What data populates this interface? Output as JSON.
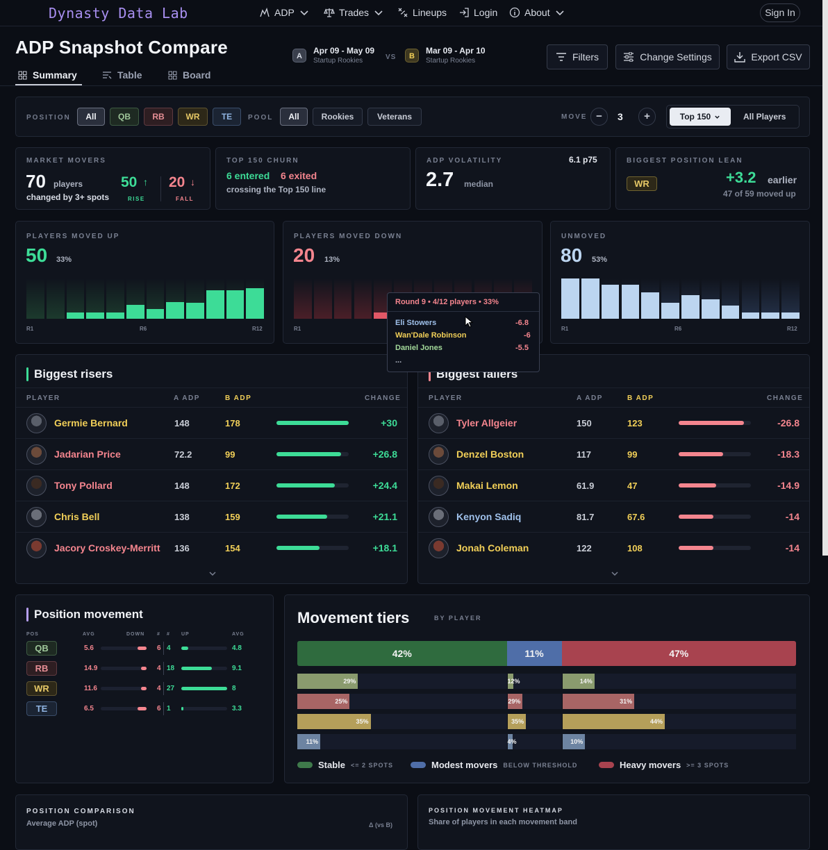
{
  "nav": {
    "logo": "Dynasty Data Lab",
    "items": [
      "ADP",
      "Trades",
      "Lineups",
      "Login",
      "About"
    ],
    "signin": "Sign In"
  },
  "header": {
    "title": "ADP Snapshot Compare",
    "tabs": [
      "Summary",
      "Table",
      "Board"
    ],
    "snapA": {
      "badge": "A",
      "range": "Apr 09 - May 09",
      "sub": "Startup Rookies"
    },
    "vs": "VS",
    "snapB": {
      "badge": "B",
      "range": "Mar 09 - Apr 10",
      "sub": "Startup Rookies"
    },
    "buttons": {
      "filters": "Filters",
      "settings": "Change Settings",
      "export": "Export CSV"
    }
  },
  "filters": {
    "position_label": "POSITION",
    "positions": [
      "All",
      "QB",
      "RB",
      "WR",
      "TE"
    ],
    "pool_label": "POOL",
    "pools": [
      "All",
      "Rookies",
      "Veterans"
    ],
    "move_label": "MOVE",
    "move_value": "3",
    "minus": "−",
    "plus": "+",
    "top": "Top 150",
    "all_players": "All Players"
  },
  "stats": {
    "movers": {
      "label": "MARKET MOVERS",
      "value": "70",
      "unit": "players",
      "sub": "changed by 3+ spots",
      "rise": "50",
      "rise_arrow": "↑",
      "rise_label": "RISE",
      "fall": "20",
      "fall_arrow": "↓",
      "fall_label": "FALL"
    },
    "churn": {
      "label": "TOP 150 CHURN",
      "entered": "6 entered",
      "exited": "6 exited",
      "sub": "crossing the Top 150 line"
    },
    "volatility": {
      "label": "ADP VOLATILITY",
      "p75": "6.1 p75",
      "value": "2.7",
      "unit": "median"
    },
    "lean": {
      "label": "BIGGEST POSITION LEAN",
      "pos": "WR",
      "value": "+3.2",
      "unit": "earlier",
      "sub": "47 of 59 moved up"
    }
  },
  "dist": {
    "up": {
      "label": "PLAYERS MOVED UP",
      "value": "50",
      "pct": "33%",
      "bars": [
        0,
        0,
        0.16,
        0.16,
        0.16,
        0.34,
        0.24,
        0.42,
        0.4,
        0.7,
        0.7,
        0.76
      ],
      "x": [
        "R1",
        "R6",
        "R12"
      ]
    },
    "down": {
      "label": "PLAYERS MOVED DOWN",
      "value": "20",
      "pct": "13%",
      "bars": [
        0,
        0,
        0,
        0,
        0.16,
        0.14,
        0.12,
        0.1,
        0.1,
        0.1,
        0.08,
        0.06
      ],
      "x": [
        "R1"
      ]
    },
    "unmoved": {
      "label": "UNMOVED",
      "value": "80",
      "pct": "53%",
      "bars": [
        1,
        1,
        0.84,
        0.84,
        0.66,
        0.4,
        0.58,
        0.48,
        0.32,
        0.16,
        0.16,
        0.16
      ],
      "x": [
        "R1",
        "R6",
        "R12"
      ]
    }
  },
  "tooltip": {
    "title": "Round 9 • 4/12 players • 33%",
    "rows": [
      {
        "name": "Eli Stowers",
        "val": "-6.8"
      },
      {
        "name": "Wan'Dale Robinson",
        "val": "-6"
      },
      {
        "name": "Daniel Jones",
        "val": "-5.5"
      }
    ],
    "more": "..."
  },
  "risers": {
    "title": "Biggest risers",
    "cols": [
      "PLAYER",
      "A ADP",
      "B ADP",
      "CHANGE"
    ],
    "rows": [
      {
        "name": "Germie Bernard",
        "a": "148",
        "b": "178",
        "chg": "+30",
        "pct": 1.0
      },
      {
        "name": "Jadarian Price",
        "a": "72.2",
        "b": "99",
        "chg": "+26.8",
        "pct": 0.89
      },
      {
        "name": "Tony Pollard",
        "a": "148",
        "b": "172",
        "chg": "+24.4",
        "pct": 0.81
      },
      {
        "name": "Chris Bell",
        "a": "138",
        "b": "159",
        "chg": "+21.1",
        "pct": 0.7
      },
      {
        "name": "Jacory Croskey-Merritt",
        "a": "136",
        "b": "154",
        "chg": "+18.1",
        "pct": 0.6
      }
    ]
  },
  "fallers": {
    "title": "Biggest fallers",
    "cols": [
      "PLAYER",
      "A ADP",
      "B ADP",
      "CHANGE"
    ],
    "rows": [
      {
        "name": "Tyler Allgeier",
        "a": "150",
        "b": "123",
        "chg": "-26.8",
        "pct": 0.9
      },
      {
        "name": "Denzel Boston",
        "a": "117",
        "b": "99",
        "chg": "-18.3",
        "pct": 0.62
      },
      {
        "name": "Makai Lemon",
        "a": "61.9",
        "b": "47",
        "chg": "-14.9",
        "pct": 0.52
      },
      {
        "name": "Kenyon Sadiq",
        "a": "81.7",
        "b": "67.6",
        "chg": "-14",
        "pct": 0.48
      },
      {
        "name": "Jonah Coleman",
        "a": "122",
        "b": "108",
        "chg": "-14",
        "pct": 0.48
      }
    ]
  },
  "position_movement": {
    "title": "Position movement",
    "cols": [
      "POS",
      "AVG",
      "DOWN",
      "#",
      "#",
      "UP",
      "AVG"
    ],
    "rows": [
      {
        "pos": "QB",
        "avg_down": "5.6",
        "down_n": "6",
        "up_n": "4",
        "avg_up": "4.8",
        "down_pct": 0.2,
        "up_pct": 0.15
      },
      {
        "pos": "RB",
        "avg_down": "14.9",
        "down_n": "4",
        "up_n": "18",
        "avg_up": "9.1",
        "down_pct": 0.12,
        "up_pct": 0.67
      },
      {
        "pos": "WR",
        "avg_down": "11.6",
        "down_n": "4",
        "up_n": "27",
        "avg_up": "8",
        "down_pct": 0.12,
        "up_pct": 1.0
      },
      {
        "pos": "TE",
        "avg_down": "6.5",
        "down_n": "6",
        "up_n": "1",
        "avg_up": "3.3",
        "down_pct": 0.2,
        "up_pct": 0.04
      }
    ]
  },
  "tiers": {
    "title": "Movement tiers",
    "sub": "BY PLAYER",
    "totals": [
      {
        "label": "42%",
        "v": 42
      },
      {
        "label": "11%",
        "v": 11
      },
      {
        "label": "47%",
        "v": 47
      }
    ],
    "rows": [
      {
        "color": "#8a9b6e",
        "vals": [
          {
            "label": "29%",
            "v": 29
          },
          {
            "label": "12%",
            "v": 12
          },
          {
            "label": "14%",
            "v": 14
          }
        ]
      },
      {
        "color": "#a86565",
        "vals": [
          {
            "label": "25%",
            "v": 25
          },
          {
            "label": "29%",
            "v": 29
          },
          {
            "label": "31%",
            "v": 31
          }
        ]
      },
      {
        "color": "#b59f5a",
        "vals": [
          {
            "label": "35%",
            "v": 35
          },
          {
            "label": "35%",
            "v": 35
          },
          {
            "label": "44%",
            "v": 44
          }
        ]
      },
      {
        "color": "#6d84a2",
        "vals": [
          {
            "label": "11%",
            "v": 11
          },
          {
            "label": "4%",
            "v": 4
          },
          {
            "label": "10%",
            "v": 10
          }
        ]
      }
    ],
    "legend": [
      {
        "name": "Stable",
        "sub": "<= 2 SPOTS",
        "color": "#3f7a4b"
      },
      {
        "name": "Modest movers",
        "sub": "BELOW THRESHOLD",
        "color": "#4f6ea8"
      },
      {
        "name": "Heavy movers",
        "sub": ">= 3 SPOTS",
        "color": "#a8434f"
      }
    ]
  },
  "bottom": {
    "left_label": "POSITION COMPARISON",
    "left_sub": "Average ADP (spot)",
    "left_delta": "Δ (vs B)",
    "right_label": "POSITION MOVEMENT HEATMAP",
    "right_sub": "Share of players in each movement band"
  },
  "colors": {
    "green": "#3ddc97",
    "red": "#f4858e",
    "gold": "#f1cf58",
    "bg": "#0b0e15"
  }
}
